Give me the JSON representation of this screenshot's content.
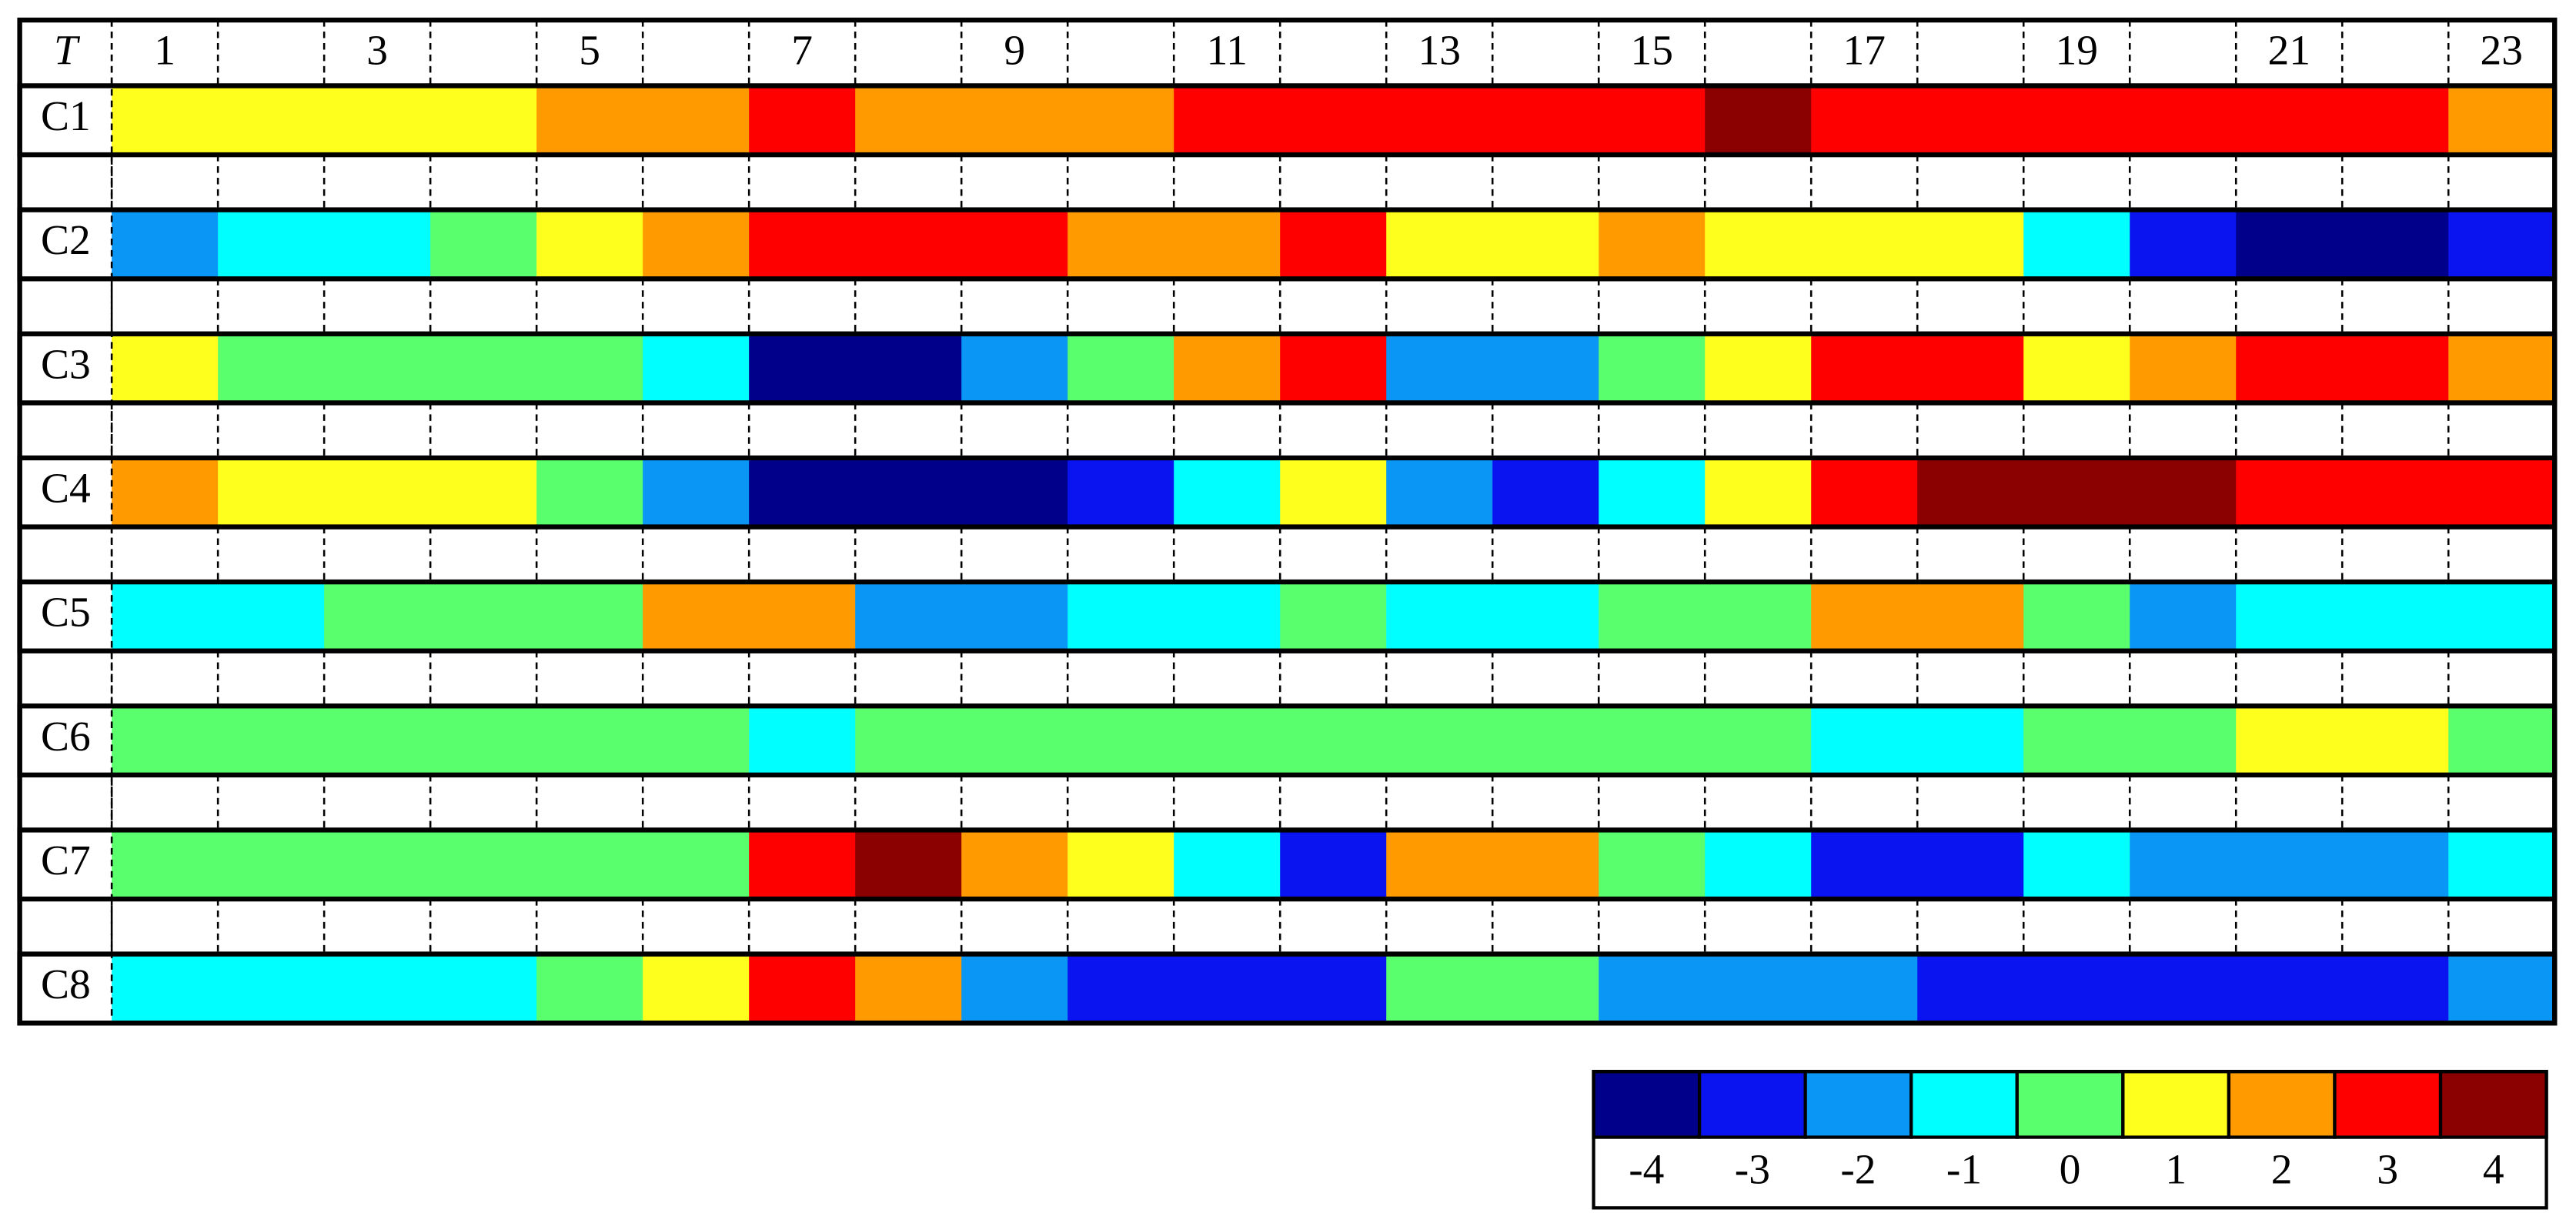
{
  "chart_data": {
    "type": "heatmap",
    "corner_label": "T",
    "categories": [
      "1",
      null,
      "3",
      null,
      "5",
      null,
      "7",
      null,
      "9",
      null,
      "11",
      null,
      "13",
      null,
      "15",
      null,
      "17",
      null,
      "19",
      null,
      "21",
      null,
      "23"
    ],
    "series": [
      {
        "name": "C1",
        "values": [
          1,
          1,
          1,
          1,
          2,
          2,
          3,
          2,
          2,
          2,
          3,
          3,
          3,
          3,
          3,
          4,
          3,
          3,
          3,
          3,
          3,
          3,
          2
        ]
      },
      {
        "name": "C2",
        "values": [
          -2,
          -1,
          -1,
          0,
          1,
          2,
          3,
          3,
          3,
          2,
          2,
          3,
          1,
          1,
          2,
          1,
          1,
          1,
          -1,
          -3,
          -4,
          -4,
          -3
        ]
      },
      {
        "name": "C3",
        "values": [
          1,
          0,
          0,
          0,
          0,
          -1,
          -4,
          -4,
          -2,
          0,
          2,
          3,
          -2,
          -2,
          0,
          1,
          3,
          3,
          1,
          2,
          3,
          3,
          2
        ]
      },
      {
        "name": "C4",
        "values": [
          2,
          1,
          1,
          1,
          0,
          -2,
          -4,
          -4,
          -4,
          -3,
          -1,
          1,
          -2,
          -3,
          -1,
          1,
          3,
          4,
          4,
          4,
          3,
          3,
          3
        ]
      },
      {
        "name": "C5",
        "values": [
          -1,
          -1,
          0,
          0,
          0,
          2,
          2,
          -2,
          -2,
          -1,
          -1,
          0,
          -1,
          -1,
          0,
          0,
          2,
          2,
          0,
          -2,
          -1,
          -1,
          -1
        ]
      },
      {
        "name": "C6",
        "values": [
          0,
          0,
          0,
          0,
          0,
          0,
          -1,
          0,
          0,
          0,
          0,
          0,
          0,
          0,
          0,
          0,
          -1,
          -1,
          0,
          0,
          1,
          1,
          0
        ]
      },
      {
        "name": "C7",
        "values": [
          0,
          0,
          0,
          0,
          0,
          0,
          3,
          4,
          2,
          1,
          -1,
          -3,
          2,
          2,
          0,
          -1,
          -3,
          -3,
          -1,
          -2,
          -2,
          -2,
          -1
        ]
      },
      {
        "name": "C8",
        "values": [
          -1,
          -1,
          -1,
          -1,
          0,
          1,
          3,
          2,
          -2,
          -3,
          -3,
          -3,
          0,
          0,
          -2,
          -2,
          -2,
          -3,
          -3,
          -3,
          -3,
          -3,
          -2
        ]
      }
    ],
    "colorscale": {
      "values": [
        -4,
        -3,
        -2,
        -1,
        0,
        1,
        2,
        3,
        4
      ],
      "colors": [
        "#00008b",
        "#0a14f0",
        "#0a96f5",
        "#00ffff",
        "#5aff6e",
        "#ffff1e",
        "#ff9b00",
        "#ff0000",
        "#8b0000"
      ]
    }
  }
}
